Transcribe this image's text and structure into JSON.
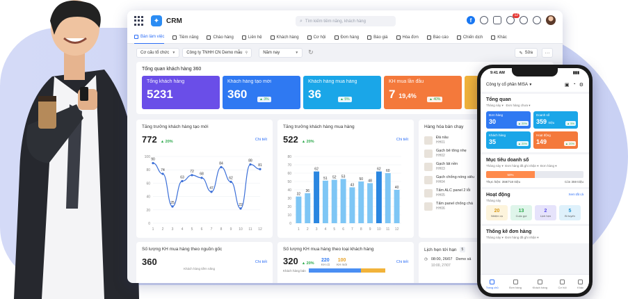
{
  "app": {
    "title": "CRM",
    "search_placeholder": "Tìm kiếm tiềm năng, khách hàng",
    "notif_count": "12"
  },
  "nav": [
    "Bàn làm việc",
    "Tiềm năng",
    "Chào hàng",
    "Liên hệ",
    "Khách hàng",
    "Cơ hội",
    "Đơn hàng",
    "Báo giá",
    "Hóa đơn",
    "Báo cáo",
    "Chiến dịch",
    "Khác"
  ],
  "filters": {
    "org_label": "Cơ cấu tổ chức",
    "company": "Công ty TNHH CN Demo mẫu",
    "period": "Năm nay",
    "edit": "Sửa",
    "more": "···"
  },
  "overview": {
    "title": "Tổng quan khách hàng 360",
    "cards": [
      {
        "label": "Tổng khách hàng",
        "value": "5231",
        "pct": "",
        "color": "#6a4ee8"
      },
      {
        "label": "Khách hàng tạo mới",
        "value": "360",
        "pct": "▲ 3%",
        "color": "#2f79f2"
      },
      {
        "label": "Khách hàng mua hàng",
        "value": "36",
        "pct": "▲ 5%",
        "color": "#1aa6e8"
      },
      {
        "label": "KH mua lần đầu",
        "value": "7",
        "value2": "19,4%",
        "pct": "▲ 40%",
        "color": "#f4793b"
      }
    ]
  },
  "growth_new": {
    "title": "Tăng trưởng khách hàng tạo mới",
    "value": "772",
    "delta": "▲ 20%",
    "link": "Chi tiết"
  },
  "growth_buy": {
    "title": "Tăng trưởng khách hàng mua hàng",
    "value": "522",
    "delta": "▲ 20%",
    "link": "Chi tiết"
  },
  "best_selling": {
    "title": "Hàng hóa bán chạy",
    "items": [
      {
        "name": "Đá nâu",
        "code": "HH01"
      },
      {
        "name": "Gạch bê tông nhẹ",
        "code": "HH02"
      },
      {
        "name": "Gạch lát nền",
        "code": "HH03"
      },
      {
        "name": "Gạch chống nóng siêu",
        "code": "HH04"
      },
      {
        "name": "Tấm ALC panel 2 lỗi",
        "code": "HH05"
      },
      {
        "name": "Tấm panel chống chá",
        "code": "HH06"
      }
    ]
  },
  "by_source": {
    "title": "Số lượng KH mua hàng theo nguồn gốc",
    "value": "360",
    "link": "Chi tiết",
    "sub": "Khách hàng tiềm năng"
  },
  "by_type": {
    "title": "Số lượng KH mua hàng theo loại khách hàng",
    "value": "320",
    "delta": "▲ 20%",
    "old_count": "220",
    "old_label": "KH cũ",
    "new_count": "100",
    "new_label": "KH mới",
    "link": "Chi tiết",
    "bar_label": "Khách hàng bán"
  },
  "appointments": {
    "title": "Lịch hẹn tới hạn",
    "count": "5",
    "rows": [
      {
        "time": "08:00, 26/07",
        "text": "Demo sả"
      },
      {
        "time": "10:00, 27/07",
        "text": ""
      }
    ]
  },
  "chart_data": [
    {
      "type": "line",
      "x": [
        1,
        2,
        3,
        4,
        5,
        6,
        7,
        8,
        9,
        10,
        11,
        12
      ],
      "values": [
        90,
        74,
        25,
        63,
        72,
        68,
        47,
        84,
        62,
        22,
        88,
        81
      ],
      "ylim": [
        0,
        100
      ],
      "yticks": [
        0,
        20,
        40,
        60,
        80,
        100
      ]
    },
    {
      "type": "bar",
      "x": [
        1,
        2,
        3,
        4,
        5,
        6,
        7,
        8,
        9,
        10,
        11,
        12
      ],
      "values": [
        32,
        36,
        62,
        51,
        52,
        53,
        43,
        50,
        48,
        62,
        60,
        40
      ],
      "ylim": [
        0,
        80
      ],
      "yticks": [
        0,
        10,
        20,
        30,
        40,
        50,
        60,
        70,
        80
      ]
    }
  ],
  "phone": {
    "time": "9:41 AM",
    "company": "Công ty cổ phần MISA",
    "overview_title": "Tổng quan",
    "period": "Tháng này",
    "filter": "Đơn hàng chưa",
    "cards": [
      {
        "label": "Đơn hàng",
        "value": "30",
        "unit": "",
        "pct": "▲ 20%",
        "color": "#2f79f2"
      },
      {
        "label": "Doanh số",
        "value": "359",
        "unit": "triệu",
        "pct": "▲ 5%",
        "color": "#1aa6e8"
      },
      {
        "label": "Khách hàng",
        "value": "35",
        "unit": "",
        "pct": "▲ 20%",
        "color": "#1aa6e8"
      },
      {
        "label": "Hoạt động",
        "value": "149",
        "unit": "",
        "pct": "▲ 20%",
        "color": "#f4793b"
      }
    ],
    "target_title": "Mục tiêu doanh số",
    "target_period": "Tháng này",
    "target_filter": "Đơn hàng đã ghi nhận",
    "target_filter2": "Đơn hàng",
    "progress": 50,
    "progress_label": "50%",
    "actual": "Thực hiện: 359/718",
    "actual_unit": "triệu",
    "remain": "Còn 359",
    "remain_unit": "triệu",
    "activity_title": "Hoạt động",
    "activity_link": "Xem tất cả",
    "activity_period": "Tháng này",
    "activities": [
      {
        "n": "20",
        "t": "Nhiệm vụ",
        "bg": "#fdf4dc",
        "c": "#d89a1a"
      },
      {
        "n": "13",
        "t": "Cuộc gọi",
        "bg": "#dff5ea",
        "c": "#2ba84a"
      },
      {
        "n": "2",
        "t": "Lịch hẹn",
        "bg": "#e6e3fb",
        "c": "#5b4ee8"
      },
      {
        "n": "5",
        "t": "Bí tuyến",
        "bg": "#dff1fb",
        "c": "#1a8fd0"
      }
    ],
    "orders_title": "Thống kê đơn hàng",
    "orders_period": "Tháng này",
    "orders_filter": "Đơn hàng đã ghi nhận",
    "tabs": [
      "Trang chủ",
      "Đơn hàng",
      "Khách hàng",
      "Cơ hội",
      "Khác"
    ]
  }
}
